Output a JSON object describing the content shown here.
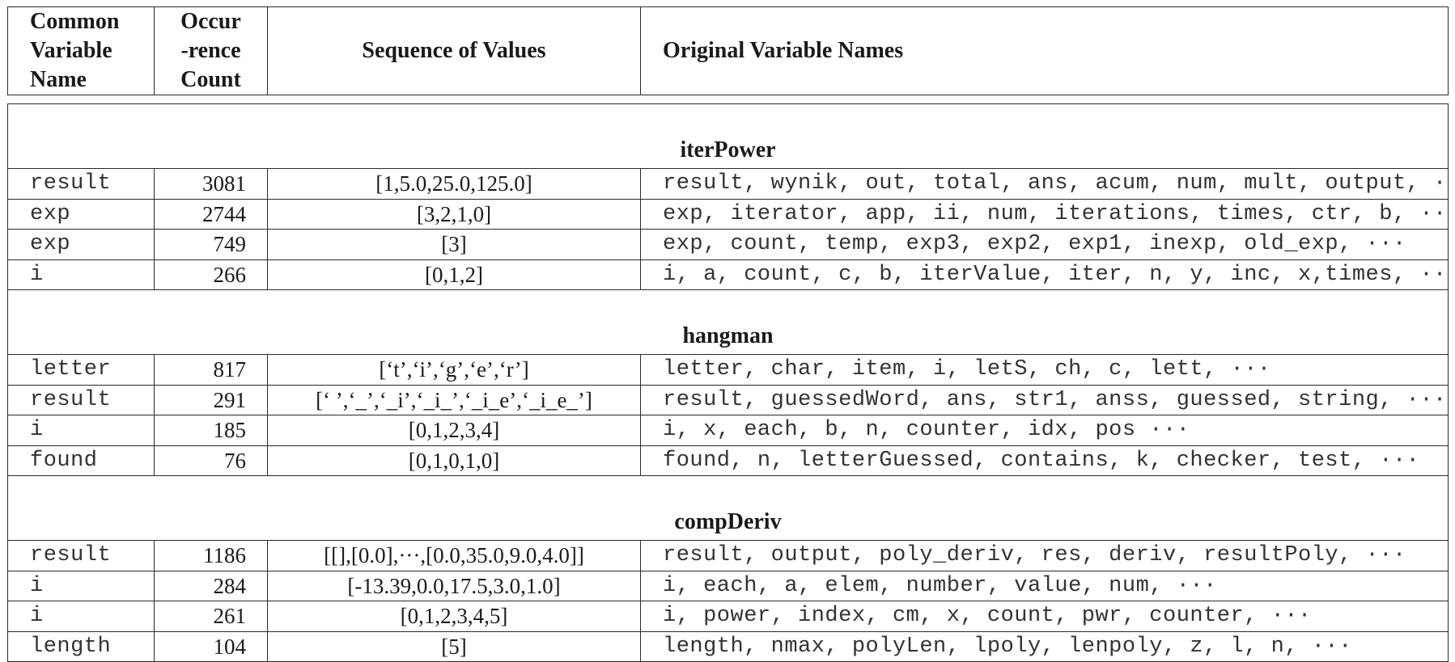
{
  "header": {
    "col1": [
      "Common",
      "Variable",
      "Name"
    ],
    "col2": [
      "Occur",
      "-rence",
      "Count"
    ],
    "col3": "Sequence of Values",
    "col4": "Original Variable Names"
  },
  "sections": [
    {
      "title": "iterPower",
      "rows": [
        {
          "name": "result",
          "count": "3081",
          "seq": "[1,5.0,25.0,125.0]",
          "orig": "result, wynik, out, total, ans, acum, num, mult, output, ···"
        },
        {
          "name": "exp",
          "count": "2744",
          "seq": "[3,2,1,0]",
          "orig": "exp, iterator, app, ii, num, iterations, times, ctr, b, ···"
        },
        {
          "name": "exp",
          "count": "749",
          "seq": "[3]",
          "orig": "exp, count, temp, exp3, exp2, exp1, inexp, old_exp, ···"
        },
        {
          "name": "i",
          "count": "266",
          "seq": "[0,1,2]",
          "orig": "i, a, count, c, b, iterValue, iter, n, y, inc, x,times, ···"
        }
      ]
    },
    {
      "title": "hangman",
      "rows": [
        {
          "name": "letter",
          "count": "817",
          "seq": "[‘t’,‘i’,‘g’,‘e’,‘r’]",
          "orig": "letter, char, item, i, letS, ch, c, lett, ···"
        },
        {
          "name": "result",
          "count": "291",
          "seq": "[‘ ’,‘_’,‘_i’,‘_i_’,‘_i_e’,‘_i_e_’]",
          "orig": "result, guessedWord, ans, str1, anss, guessed, string, ···"
        },
        {
          "name": "i",
          "count": "185",
          "seq": "[0,1,2,3,4]",
          "orig": "i, x, each, b, n, counter, idx, pos ···"
        },
        {
          "name": "found",
          "count": "76",
          "seq": "[0,1,0,1,0]",
          "orig": "found, n, letterGuessed, contains, k, checker, test, ···"
        }
      ]
    },
    {
      "title": "compDeriv",
      "rows": [
        {
          "name": "result",
          "count": "1186",
          "seq": "[[],[0.0],···,[0.0,35.0,9.0,4.0]]",
          "orig": "result, output, poly_deriv, res, deriv, resultPoly, ···"
        },
        {
          "name": "i",
          "count": "284",
          "seq": "[-13.39,0.0,17.5,3.0,1.0]",
          "orig": "i, each, a, elem, number, value, num, ···"
        },
        {
          "name": "i",
          "count": "261",
          "seq": "[0,1,2,3,4,5]",
          "orig": "i, power, index, cm, x, count, pwr, counter, ···"
        },
        {
          "name": "length",
          "count": "104",
          "seq": "[5]",
          "orig": "length, nmax, polyLen, lpoly, lenpoly, z, l, n, ···"
        }
      ]
    }
  ]
}
